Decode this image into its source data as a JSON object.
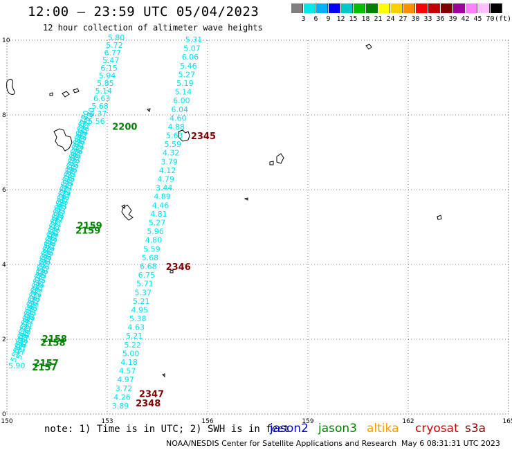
{
  "header": {
    "title": "12:00 – 23:59 UTC 05/04/2023",
    "subtitle": "12 hour collection of altimeter wave heights"
  },
  "legend": {
    "colors": [
      "#808080",
      "#00e8e8",
      "#00b0ff",
      "#0000ff",
      "#00c8c8",
      "#00c000",
      "#008000",
      "#ffff00",
      "#ffd000",
      "#ff9000",
      "#ff0000",
      "#c00000",
      "#800000",
      "#a000a0",
      "#ff80ff",
      "#ffc0ff",
      "#000000"
    ],
    "labels": [
      "",
      "3",
      "6",
      "9",
      "12",
      "15",
      "18",
      "21",
      "24",
      "27",
      "30",
      "33",
      "36",
      "39",
      "42",
      "45",
      "70",
      "(ft)"
    ]
  },
  "map": {
    "lon_ticks": [
      "150",
      "153",
      "156",
      "159",
      "162",
      "165"
    ],
    "lat_ticks": [
      "0",
      "2",
      "4",
      "6",
      "8",
      "10"
    ],
    "lon_range": [
      150,
      165
    ],
    "lat_range": [
      0,
      10
    ],
    "grid": "dotted",
    "track_b_values": [
      "5.31",
      "5.07",
      "6.06",
      "5.46",
      "5.27",
      "5.19",
      "5.14",
      "6.00",
      "6.04",
      "4.60",
      "4.88",
      "5.63",
      "5.59",
      "4.32",
      "3.79",
      "4.12",
      "4.79",
      "3.44",
      "4.89",
      "4.46",
      "4.81",
      "5.27",
      "5.96",
      "4.80",
      "5.59",
      "5.68",
      "6.68",
      "6.75",
      "5.71",
      "5.37",
      "5.21",
      "4.95",
      "5.38",
      "4.63",
      "5.21",
      "5.22",
      "5.00",
      "4.18",
      "4.57",
      "4.97",
      "3.72",
      "4.26",
      "3.89"
    ],
    "track_a_top_values": [
      "5.80",
      "5.72",
      "6.77",
      "5.47",
      "6.15",
      "5.94",
      "5.85",
      "5.14",
      "6.63",
      "5.68",
      "6.37",
      "5.56"
    ],
    "track_a_bottom_values": [
      "5.55",
      "5.08",
      "5.07",
      "5.18",
      "5.10",
      "5.27",
      "5.52",
      "5.48",
      "5.35",
      "5.90"
    ],
    "time_labels": [
      {
        "text": "2200",
        "color": "#008000",
        "lon": 153.15,
        "lat": 7.6
      },
      {
        "text": "2345",
        "color": "#800000",
        "lon": 155.5,
        "lat": 7.35
      },
      {
        "text": "2159",
        "color": "#008000",
        "lon": 152.1,
        "lat": 4.95
      },
      {
        "text": "2159",
        "color": "#008000",
        "lon": 152.05,
        "lat": 4.82
      },
      {
        "text": "2346",
        "color": "#800000",
        "lon": 154.75,
        "lat": 3.85
      },
      {
        "text": "2158",
        "color": "#008000",
        "lon": 151.05,
        "lat": 1.93
      },
      {
        "text": "2158",
        "color": "#008000",
        "lon": 151.0,
        "lat": 1.82
      },
      {
        "text": "2157",
        "color": "#008000",
        "lon": 150.8,
        "lat": 1.28
      },
      {
        "text": "2157",
        "color": "#008000",
        "lon": 150.75,
        "lat": 1.17
      },
      {
        "text": "2347",
        "color": "#800000",
        "lon": 153.95,
        "lat": 0.45
      },
      {
        "text": "2348",
        "color": "#800000",
        "lon": 153.85,
        "lat": 0.2
      }
    ]
  },
  "footer": {
    "note": "note:  1) Time is in UTC; 2) SWH is in feet",
    "satellites": [
      {
        "name": "jason2",
        "color": "#0000cc"
      },
      {
        "name": "jason3",
        "color": "#008000"
      },
      {
        "name": "altika",
        "color": "#ff9900"
      },
      {
        "name": "cryosat",
        "color": "#cc0000"
      },
      {
        "name": "s3a",
        "color": "#800000"
      }
    ],
    "credit": "NOAA/NESDIS Center for Satellite Applications and Research",
    "timestamp": "May  6 08:31:31 UTC 2023"
  }
}
